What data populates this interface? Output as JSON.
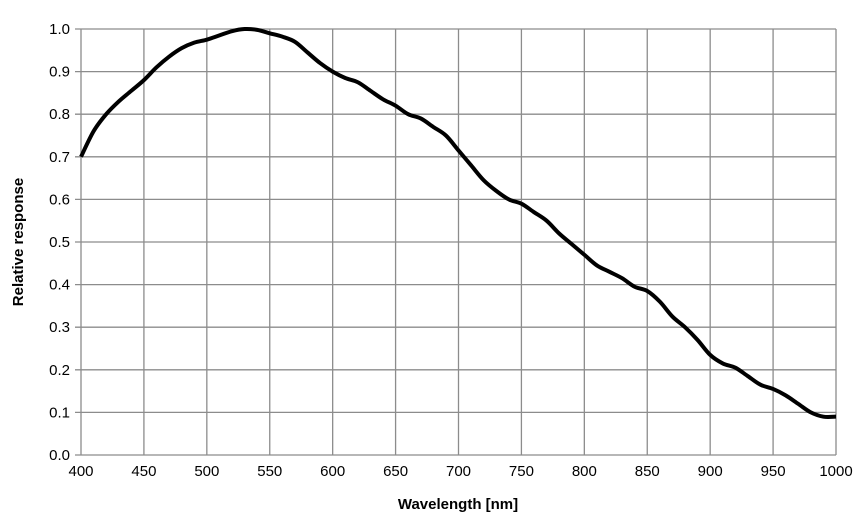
{
  "chart_data": {
    "type": "line",
    "title": "",
    "xlabel": "Wavelength [nm]",
    "ylabel": "Relative response",
    "xlim": [
      400,
      1000
    ],
    "ylim": [
      0,
      1.0
    ],
    "xticks": [
      400,
      450,
      500,
      550,
      600,
      650,
      700,
      750,
      800,
      850,
      900,
      950,
      1000
    ],
    "yticks": [
      "0.0",
      "0.1",
      "0.2",
      "0.3",
      "0.4",
      "0.5",
      "0.6",
      "0.7",
      "0.8",
      "0.9",
      "1.0"
    ],
    "grid": true,
    "line_color": "#000000",
    "grid_color": "#8c8c8c",
    "series": [
      {
        "x": [
          400,
          410,
          420,
          430,
          440,
          450,
          460,
          470,
          480,
          490,
          500,
          510,
          520,
          530,
          540,
          550,
          560,
          570,
          580,
          590,
          600,
          610,
          620,
          630,
          640,
          650,
          660,
          670,
          680,
          690,
          700,
          710,
          720,
          730,
          740,
          750,
          760,
          770,
          780,
          790,
          800,
          810,
          820,
          830,
          840,
          850,
          860,
          870,
          880,
          890,
          900,
          910,
          920,
          930,
          940,
          950,
          960,
          970,
          980,
          990,
          1000
        ],
        "y": [
          0.7,
          0.76,
          0.8,
          0.83,
          0.855,
          0.88,
          0.91,
          0.935,
          0.955,
          0.968,
          0.975,
          0.985,
          0.995,
          1.0,
          0.998,
          0.99,
          0.982,
          0.97,
          0.945,
          0.92,
          0.9,
          0.885,
          0.875,
          0.855,
          0.835,
          0.82,
          0.8,
          0.79,
          0.77,
          0.75,
          0.715,
          0.68,
          0.645,
          0.62,
          0.6,
          0.59,
          0.57,
          0.55,
          0.52,
          0.495,
          0.47,
          0.445,
          0.43,
          0.415,
          0.395,
          0.385,
          0.36,
          0.325,
          0.3,
          0.27,
          0.235,
          0.215,
          0.205,
          0.185,
          0.165,
          0.155,
          0.14,
          0.12,
          0.1,
          0.09,
          0.09
        ]
      }
    ]
  }
}
